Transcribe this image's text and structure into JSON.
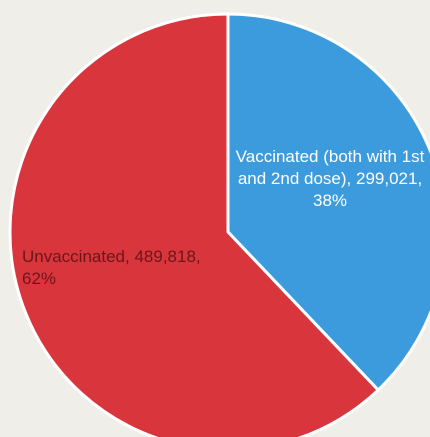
{
  "chart_data": {
    "type": "pie",
    "categories": [
      "Vaccinated (both with 1st and 2nd dose)",
      "Unvaccinated"
    ],
    "values": [
      299021,
      489818
    ],
    "value_labels": [
      "299,021",
      "489,818"
    ],
    "percent_labels": [
      "38%",
      "62%"
    ],
    "colors": [
      "#3c9bdc",
      "#d8353d"
    ],
    "start_angle": 0,
    "direction": "clockwise"
  }
}
